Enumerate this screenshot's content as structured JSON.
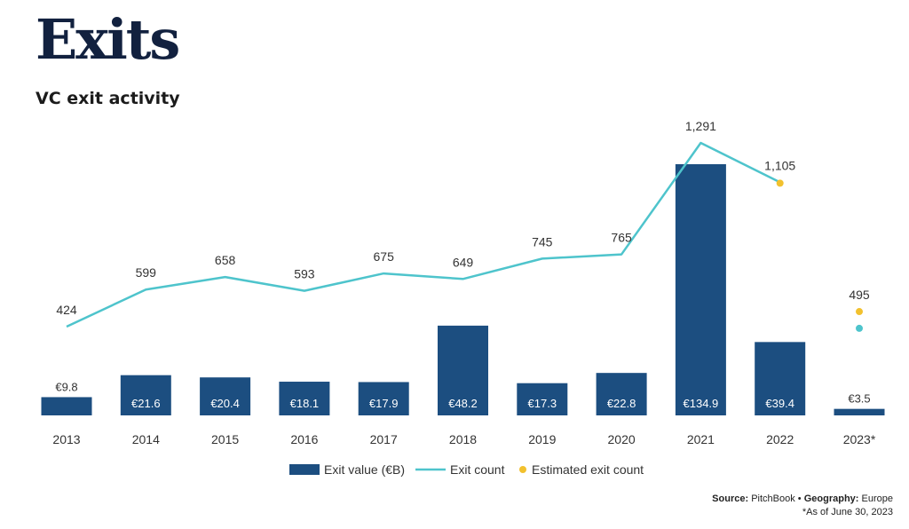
{
  "page": {
    "heading": "Exits",
    "chart_title": "VC exit activity",
    "source_label": "Source:",
    "source_value": "PitchBook",
    "separator": "•",
    "geography_label": "Geography:",
    "geography_value": "Europe",
    "footnote": "*As of June 30, 2023"
  },
  "colors": {
    "bar": "#1c4e80",
    "line": "#4ec4cc",
    "estimate": "#f2c12e",
    "bar_label": "#ffffff",
    "text": "#333333"
  },
  "chart_data": {
    "type": "bar",
    "title": "VC exit activity",
    "categories": [
      "2013",
      "2014",
      "2015",
      "2016",
      "2017",
      "2018",
      "2019",
      "2020",
      "2021",
      "2022",
      "2023*"
    ],
    "series": [
      {
        "name": "Exit value (€B)",
        "kind": "bar",
        "values": [
          9.8,
          21.6,
          20.4,
          18.1,
          17.9,
          48.2,
          17.3,
          22.8,
          134.9,
          39.4,
          3.5
        ],
        "labels": [
          "€9.8",
          "€21.6",
          "€20.4",
          "€18.1",
          "€17.9",
          "€48.2",
          "€17.3",
          "€22.8",
          "€134.9",
          "€39.4",
          "€3.5"
        ]
      },
      {
        "name": "Exit count",
        "kind": "line",
        "values": [
          424,
          599,
          658,
          593,
          675,
          649,
          745,
          765,
          1291,
          1105,
          416
        ],
        "labels": [
          "424",
          "599",
          "658",
          "593",
          "675",
          "649",
          "745",
          "765",
          "1,291",
          "1,105",
          ""
        ]
      },
      {
        "name": "Estimated exit count",
        "kind": "dot",
        "values": [
          null,
          null,
          null,
          null,
          null,
          null,
          null,
          null,
          null,
          1101,
          495
        ],
        "labels": [
          "",
          "",
          "",
          "",
          "",
          "",
          "",
          "",
          "",
          "",
          "495"
        ]
      }
    ],
    "legend": {
      "position": "bottom",
      "items": [
        "Exit value (€B)",
        "Exit count",
        "Estimated exit count"
      ]
    },
    "grid": false
  }
}
